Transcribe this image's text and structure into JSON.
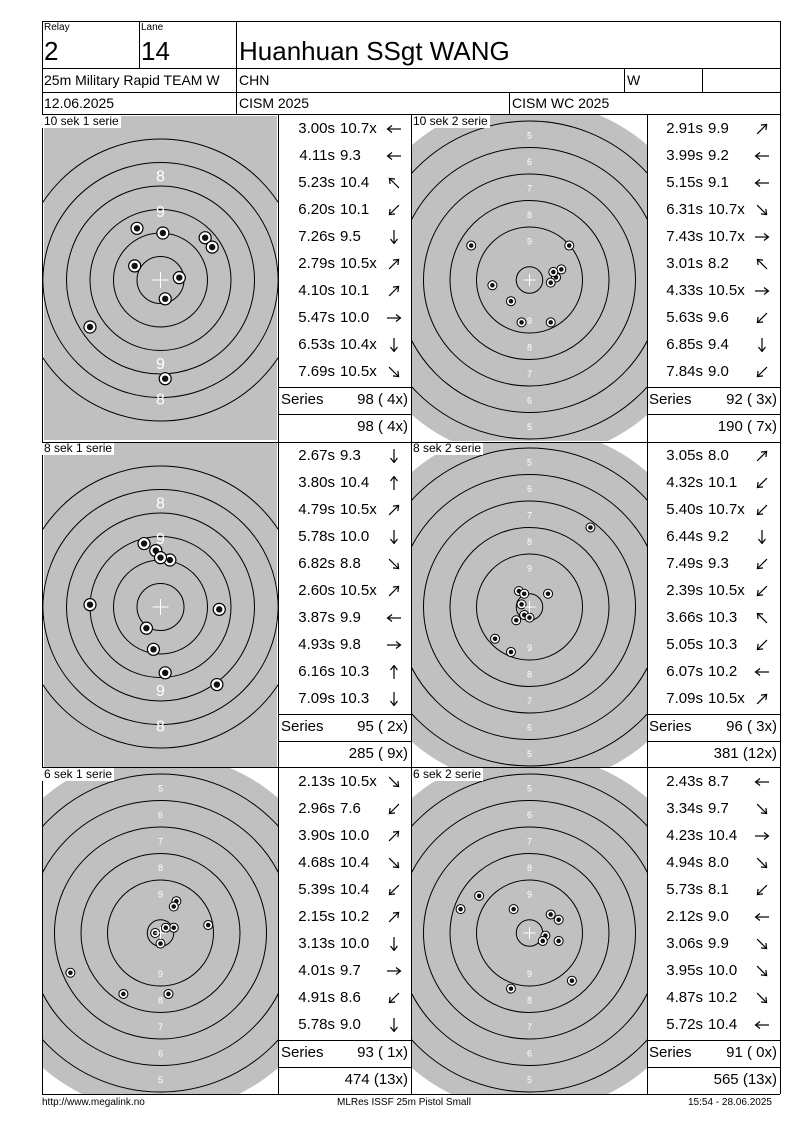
{
  "header": {
    "relay_label": "Relay",
    "relay": "2",
    "lane_label": "Lane",
    "lane": "14",
    "shooter": "Huanhuan SSgt WANG",
    "event": "25m Military Rapid TEAM W",
    "nation": "CHN",
    "gender": "W",
    "date": "12.06.2025",
    "competition": "CISM 2025",
    "match": "CISM WC 2025"
  },
  "series": [
    {
      "title": "10 sek 1 serie",
      "series_label": "Series",
      "series_total": "98 ( 4x)",
      "running_total": "98 ( 4x)",
      "shots": [
        {
          "time": "3.00s",
          "score": "10.7x",
          "dir": "W"
        },
        {
          "time": "4.11s",
          "score": "9.3",
          "dir": "W"
        },
        {
          "time": "5.23s",
          "score": "10.4",
          "dir": "NW"
        },
        {
          "time": "6.20s",
          "score": "10.1",
          "dir": "SW"
        },
        {
          "time": "7.26s",
          "score": "9.5",
          "dir": "S"
        },
        {
          "time": "2.79s",
          "score": "10.5x",
          "dir": "NE"
        },
        {
          "time": "4.10s",
          "score": "10.1",
          "dir": "NE"
        },
        {
          "time": "5.47s",
          "score": "10.0",
          "dir": "E"
        },
        {
          "time": "6.53s",
          "score": "10.4x",
          "dir": "S"
        },
        {
          "time": "7.69s",
          "score": "10.5x",
          "dir": "SE"
        }
      ]
    },
    {
      "title": "10 sek 2 serie",
      "series_label": "Series",
      "series_total": "92 ( 3x)",
      "running_total": "190 ( 7x)",
      "shots": [
        {
          "time": "2.91s",
          "score": "9.9",
          "dir": "NE"
        },
        {
          "time": "3.99s",
          "score": "9.2",
          "dir": "W"
        },
        {
          "time": "5.15s",
          "score": "9.1",
          "dir": "W"
        },
        {
          "time": "6.31s",
          "score": "10.7x",
          "dir": "SE"
        },
        {
          "time": "7.43s",
          "score": "10.7x",
          "dir": "E"
        },
        {
          "time": "3.01s",
          "score": "8.2",
          "dir": "NW"
        },
        {
          "time": "4.33s",
          "score": "10.5x",
          "dir": "E"
        },
        {
          "time": "5.63s",
          "score": "9.6",
          "dir": "SW"
        },
        {
          "time": "6.85s",
          "score": "9.4",
          "dir": "S"
        },
        {
          "time": "7.84s",
          "score": "9.0",
          "dir": "SW"
        }
      ]
    },
    {
      "title": "8 sek 1 serie",
      "series_label": "Series",
      "series_total": "95 ( 2x)",
      "running_total": "285 ( 9x)",
      "shots": [
        {
          "time": "2.67s",
          "score": "9.3",
          "dir": "S"
        },
        {
          "time": "3.80s",
          "score": "10.4",
          "dir": "N"
        },
        {
          "time": "4.79s",
          "score": "10.5x",
          "dir": "NE"
        },
        {
          "time": "5.78s",
          "score": "10.0",
          "dir": "S"
        },
        {
          "time": "6.82s",
          "score": "8.8",
          "dir": "SE"
        },
        {
          "time": "2.60s",
          "score": "10.5x",
          "dir": "NE"
        },
        {
          "time": "3.87s",
          "score": "9.9",
          "dir": "W"
        },
        {
          "time": "4.93s",
          "score": "9.8",
          "dir": "E"
        },
        {
          "time": "6.16s",
          "score": "10.3",
          "dir": "N"
        },
        {
          "time": "7.09s",
          "score": "10.3",
          "dir": "S"
        }
      ]
    },
    {
      "title": "8 sek 2 serie",
      "series_label": "Series",
      "series_total": "96 ( 3x)",
      "running_total": "381 (12x)",
      "shots": [
        {
          "time": "3.05s",
          "score": "8.0",
          "dir": "NE"
        },
        {
          "time": "4.32s",
          "score": "10.1",
          "dir": "SW"
        },
        {
          "time": "5.40s",
          "score": "10.7x",
          "dir": "SW"
        },
        {
          "time": "6.44s",
          "score": "9.2",
          "dir": "S"
        },
        {
          "time": "7.49s",
          "score": "9.3",
          "dir": "SW"
        },
        {
          "time": "2.39s",
          "score": "10.5x",
          "dir": "SW"
        },
        {
          "time": "3.66s",
          "score": "10.3",
          "dir": "NW"
        },
        {
          "time": "5.05s",
          "score": "10.3",
          "dir": "SW"
        },
        {
          "time": "6.07s",
          "score": "10.2",
          "dir": "W"
        },
        {
          "time": "7.09s",
          "score": "10.5x",
          "dir": "NE"
        }
      ]
    },
    {
      "title": "6 sek 1 serie",
      "series_label": "Series",
      "series_total": "93 ( 1x)",
      "running_total": "474 (13x)",
      "shots": [
        {
          "time": "2.13s",
          "score": "10.5x",
          "dir": "SE"
        },
        {
          "time": "2.96s",
          "score": "7.6",
          "dir": "SW"
        },
        {
          "time": "3.90s",
          "score": "10.0",
          "dir": "NE"
        },
        {
          "time": "4.68s",
          "score": "10.4",
          "dir": "SE"
        },
        {
          "time": "5.39s",
          "score": "10.4",
          "dir": "SW"
        },
        {
          "time": "2.15s",
          "score": "10.2",
          "dir": "NE"
        },
        {
          "time": "3.13s",
          "score": "10.0",
          "dir": "S"
        },
        {
          "time": "4.01s",
          "score": "9.7",
          "dir": "E"
        },
        {
          "time": "4.91s",
          "score": "8.6",
          "dir": "SW"
        },
        {
          "time": "5.78s",
          "score": "9.0",
          "dir": "S"
        }
      ]
    },
    {
      "title": "6 sek 2 serie",
      "series_label": "Series",
      "series_total": "91 ( 0x)",
      "running_total": "565 (13x)",
      "shots": [
        {
          "time": "2.43s",
          "score": "8.7",
          "dir": "W"
        },
        {
          "time": "3.34s",
          "score": "9.7",
          "dir": "SE"
        },
        {
          "time": "4.23s",
          "score": "10.4",
          "dir": "E"
        },
        {
          "time": "4.94s",
          "score": "8.0",
          "dir": "SE"
        },
        {
          "time": "5.73s",
          "score": "8.1",
          "dir": "SW"
        },
        {
          "time": "2.12s",
          "score": "9.0",
          "dir": "W"
        },
        {
          "time": "3.06s",
          "score": "9.9",
          "dir": "SE"
        },
        {
          "time": "3.95s",
          "score": "10.0",
          "dir": "SE"
        },
        {
          "time": "4.87s",
          "score": "10.2",
          "dir": "SE"
        },
        {
          "time": "5.72s",
          "score": "10.4",
          "dir": "W"
        }
      ]
    }
  ],
  "targets": [
    {
      "type": "zoom",
      "ring_labels": [
        "8",
        "9",
        "9",
        "8"
      ],
      "hits": [
        [
          -7.9,
          0.3
        ],
        [
          -1.0,
          2.2
        ],
        [
          0.1,
          2.0
        ],
        [
          -1.1,
          0.6
        ],
        [
          1.9,
          1.8
        ],
        [
          2.2,
          1.4
        ],
        [
          0.8,
          0.1
        ],
        [
          0.2,
          -0.8
        ],
        [
          -3.0,
          -2.0
        ],
        [
          0.2,
          -4.2
        ]
      ]
    },
    {
      "type": "full",
      "ring_labels": [
        "5",
        "6",
        "7",
        "8",
        "9",
        "9",
        "8",
        "7",
        "6",
        "5"
      ],
      "hits": [
        [
          -2.2,
          1.3
        ],
        [
          1.5,
          1.3
        ],
        [
          1.2,
          0.4
        ],
        [
          1.0,
          0.1
        ],
        [
          0.8,
          -0.1
        ],
        [
          -1.4,
          -0.2
        ],
        [
          -0.7,
          -0.8
        ],
        [
          -0.3,
          -1.6
        ],
        [
          0.8,
          -1.6
        ],
        [
          0.9,
          0.3
        ]
      ]
    },
    {
      "type": "zoom",
      "ring_labels": [
        "8",
        "9",
        "9",
        "8"
      ],
      "hits": [
        [
          -0.7,
          2.7
        ],
        [
          -0.2,
          2.4
        ],
        [
          0.4,
          2.0
        ],
        [
          -3.0,
          0.1
        ],
        [
          2.5,
          -0.1
        ],
        [
          -0.6,
          -0.9
        ],
        [
          -0.3,
          -1.8
        ],
        [
          0.2,
          -2.8
        ],
        [
          2.4,
          -3.3
        ],
        [
          0.0,
          2.1
        ]
      ]
    },
    {
      "type": "full",
      "ring_labels": [
        "5",
        "6",
        "7",
        "8",
        "9",
        "9",
        "8",
        "7",
        "6",
        "5"
      ],
      "hits": [
        [
          2.3,
          3.0
        ],
        [
          -0.4,
          0.6
        ],
        [
          -0.2,
          0.5
        ],
        [
          0.7,
          0.5
        ],
        [
          -0.3,
          0.1
        ],
        [
          -0.2,
          -0.3
        ],
        [
          0.0,
          -0.4
        ],
        [
          -0.5,
          -0.5
        ],
        [
          -1.3,
          -1.2
        ],
        [
          -0.7,
          -1.7
        ]
      ]
    },
    {
      "type": "full",
      "ring_labels": [
        "5",
        "6",
        "7",
        "8",
        "9",
        "9",
        "8",
        "7",
        "6",
        "5"
      ],
      "hits": [
        [
          0.6,
          1.2
        ],
        [
          0.5,
          1.0
        ],
        [
          1.8,
          0.3
        ],
        [
          0.5,
          0.2
        ],
        [
          0.2,
          0.2
        ],
        [
          -0.2,
          0.0
        ],
        [
          0.0,
          -0.4
        ],
        [
          -3.4,
          -1.5
        ],
        [
          -1.4,
          -2.3
        ],
        [
          0.3,
          -2.3
        ]
      ]
    },
    {
      "type": "full",
      "ring_labels": [
        "5",
        "6",
        "7",
        "8",
        "9",
        "9",
        "8",
        "7",
        "6",
        "5"
      ],
      "hits": [
        [
          -1.9,
          1.4
        ],
        [
          -2.6,
          0.9
        ],
        [
          -0.6,
          0.9
        ],
        [
          0.8,
          0.7
        ],
        [
          1.1,
          0.5
        ],
        [
          0.6,
          -0.1
        ],
        [
          0.5,
          -0.3
        ],
        [
          1.1,
          -0.3
        ],
        [
          1.6,
          -1.8
        ],
        [
          -0.7,
          -2.1
        ]
      ]
    }
  ],
  "footer": {
    "left": "http://www.megalink.no",
    "center": "MLRes ISSF 25m Pistol Small",
    "right": "15:54 - 28.06.2025"
  }
}
